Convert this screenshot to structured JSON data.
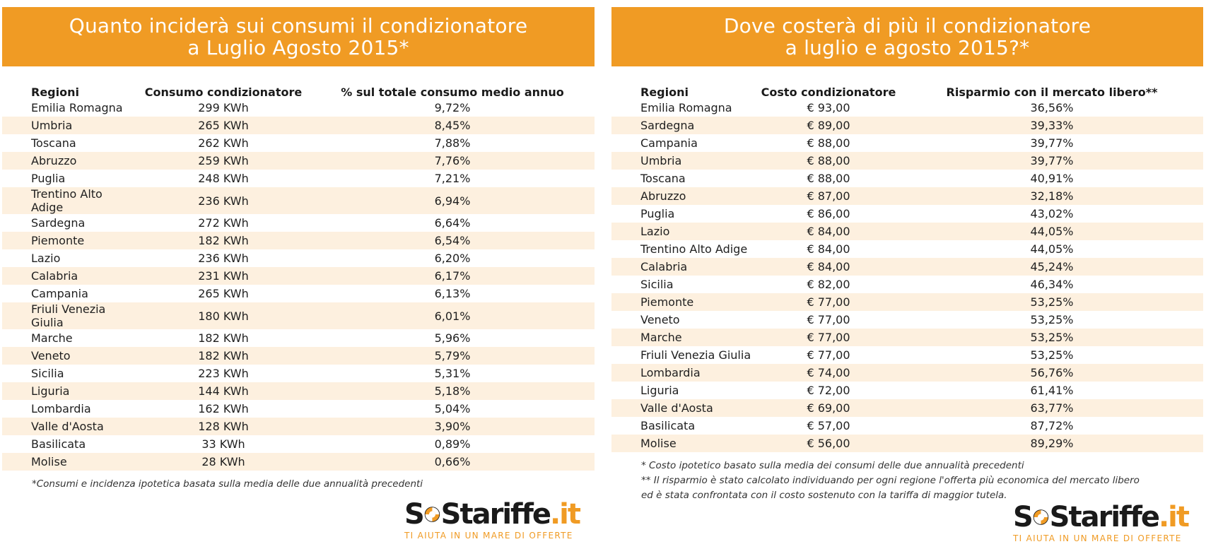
{
  "left": {
    "title_line1": "Quanto inciderà sui consumi il condizionatore",
    "title_line2": "a Luglio Agosto 2015*",
    "headers": [
      "Regioni",
      "Consumo condizionatore",
      "% sul totale consumo medio annuo"
    ],
    "rows": [
      [
        "Emilia Romagna",
        "299 KWh",
        "9,72%"
      ],
      [
        "Umbria",
        "265 KWh",
        "8,45%"
      ],
      [
        "Toscana",
        "262 KWh",
        "7,88%"
      ],
      [
        "Abruzzo",
        "259 KWh",
        "7,76%"
      ],
      [
        "Puglia",
        "248 KWh",
        "7,21%"
      ],
      [
        "Trentino Alto Adige",
        "236 KWh",
        "6,94%"
      ],
      [
        "Sardegna",
        "272 KWh",
        "6,64%"
      ],
      [
        "Piemonte",
        "182 KWh",
        "6,54%"
      ],
      [
        "Lazio",
        "236 KWh",
        "6,20%"
      ],
      [
        "Calabria",
        "231 KWh",
        "6,17%"
      ],
      [
        "Campania",
        "265 KWh",
        "6,13%"
      ],
      [
        "Friuli Venezia Giulia",
        "180 KWh",
        "6,01%"
      ],
      [
        "Marche",
        "182 KWh",
        "5,96%"
      ],
      [
        "Veneto",
        "182 KWh",
        "5,79%"
      ],
      [
        "Sicilia",
        "223 KWh",
        "5,31%"
      ],
      [
        "Liguria",
        "144 KWh",
        "5,18%"
      ],
      [
        "Lombardia",
        "162 KWh",
        "5,04%"
      ],
      [
        "Valle d'Aosta",
        "128 KWh",
        "3,90%"
      ],
      [
        "Basilicata",
        "33 KWh",
        "0,89%"
      ],
      [
        "Molise",
        "28 KWh",
        "0,66%"
      ]
    ],
    "footnotes": [
      "*Consumi e incidenza ipotetica basata sulla media delle due annualità precedenti"
    ]
  },
  "right": {
    "title_line1": "Dove costerà di più il condizionatore",
    "title_line2": "a luglio e agosto 2015?*",
    "headers": [
      "Regioni",
      "Costo condizionatore",
      "Risparmio con il mercato libero**"
    ],
    "rows": [
      [
        "Emilia Romagna",
        "€ 93,00",
        "36,56%"
      ],
      [
        "Sardegna",
        "€ 89,00",
        "39,33%"
      ],
      [
        "Campania",
        "€ 88,00",
        "39,77%"
      ],
      [
        "Umbria",
        "€ 88,00",
        "39,77%"
      ],
      [
        "Toscana",
        "€ 88,00",
        "40,91%"
      ],
      [
        "Abruzzo",
        "€ 87,00",
        "32,18%"
      ],
      [
        "Puglia",
        "€ 86,00",
        "43,02%"
      ],
      [
        "Lazio",
        "€ 84,00",
        "44,05%"
      ],
      [
        "Trentino Alto Adige",
        "€ 84,00",
        "44,05%"
      ],
      [
        "Calabria",
        "€ 84,00",
        "45,24%"
      ],
      [
        "Sicilia",
        "€ 82,00",
        "46,34%"
      ],
      [
        "Piemonte",
        "€ 77,00",
        "53,25%"
      ],
      [
        "Veneto",
        "€ 77,00",
        "53,25%"
      ],
      [
        "Marche",
        "€ 77,00",
        "53,25%"
      ],
      [
        "Friuli Venezia Giulia",
        "€ 77,00",
        "53,25%"
      ],
      [
        "Lombardia",
        "€ 74,00",
        "56,76%"
      ],
      [
        "Liguria",
        "€ 72,00",
        "61,41%"
      ],
      [
        "Valle d'Aosta",
        "€ 69,00",
        "63,77%"
      ],
      [
        "Basilicata",
        "€ 57,00",
        "87,72%"
      ],
      [
        "Molise",
        "€ 56,00",
        "89,29%"
      ]
    ],
    "footnotes": [
      "* Costo ipotetico basato sulla media dei consumi delle due annualità precedenti",
      "** Il risparmio è stato calcolato individuando per ogni regione l'offerta più economica del mercato libero",
      "ed è stata confrontata con il costo sostenuto con la tariffa di maggior tutela."
    ]
  },
  "logo": {
    "brand_prefix": "S",
    "brand_s": "S",
    "brand_mid": "tariffe",
    "brand_tld": ".it",
    "tagline": "TI AIUTA IN UN MARE DI OFFERTE",
    "icon": "lifebuoy-icon"
  },
  "colors": {
    "accent": "#f09b24",
    "stripe": "#fdf0df",
    "text": "#1f1f1f"
  }
}
